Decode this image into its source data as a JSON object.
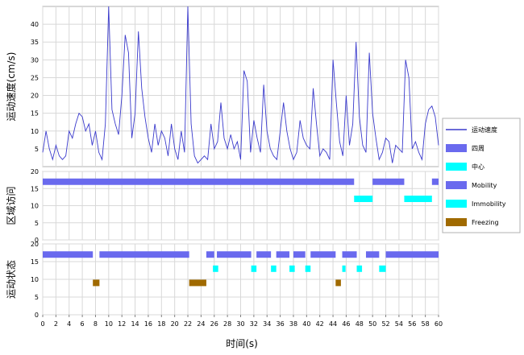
{
  "chart_data": {
    "type": "line",
    "xlabel": "时间(s)",
    "xlim": [
      0,
      60
    ],
    "xticks": [
      0,
      2,
      4,
      6,
      8,
      10,
      12,
      14,
      16,
      18,
      20,
      22,
      24,
      26,
      28,
      30,
      32,
      34,
      36,
      38,
      40,
      42,
      44,
      46,
      48,
      50,
      52,
      54,
      56,
      58,
      60
    ],
    "legend": [
      {
        "label": "运动速度",
        "color": "#3a3acc",
        "kind": "line"
      },
      {
        "label": "四周",
        "color": "#6a6aee",
        "kind": "box"
      },
      {
        "label": "中心",
        "color": "#00ffff",
        "kind": "box"
      },
      {
        "label": "Mobility",
        "color": "#6a6aee",
        "kind": "box"
      },
      {
        "label": "Immobility",
        "color": "#00ffff",
        "kind": "box"
      },
      {
        "label": "Freezing",
        "color": "#a06a00",
        "kind": "box"
      }
    ],
    "panels": [
      {
        "name": "speed",
        "ylabel": "运动速度(cm/s)",
        "ylim": [
          0,
          45
        ],
        "yticks": [
          5,
          10,
          15,
          20,
          25,
          30,
          35,
          40
        ],
        "series": [
          {
            "name": "运动速度",
            "color": "#3a3acc",
            "x": [
              0,
              0.5,
              1,
              1.5,
              2,
              2.5,
              3,
              3.5,
              4,
              4.5,
              5,
              5.5,
              6,
              6.5,
              7,
              7.5,
              8,
              8.5,
              9,
              9.5,
              10,
              10.5,
              11,
              11.5,
              12,
              12.5,
              13,
              13.5,
              14,
              14.5,
              15,
              15.5,
              16,
              16.5,
              17,
              17.5,
              18,
              18.5,
              19,
              19.5,
              20,
              20.5,
              21,
              21.5,
              22,
              22.5,
              23,
              23.5,
              24,
              24.5,
              25,
              25.5,
              26,
              26.5,
              27,
              27.5,
              28,
              28.5,
              29,
              29.5,
              30,
              30.5,
              31,
              31.5,
              32,
              32.5,
              33,
              33.5,
              34,
              34.5,
              35,
              35.5,
              36,
              36.5,
              37,
              37.5,
              38,
              38.5,
              39,
              39.5,
              40,
              40.5,
              41,
              41.5,
              42,
              42.5,
              43,
              43.5,
              44,
              44.5,
              45,
              45.5,
              46,
              46.5,
              47,
              47.5,
              48,
              48.5,
              49,
              49.5,
              50,
              50.5,
              51,
              51.5,
              52,
              52.5,
              53,
              53.5,
              54,
              54.5,
              55,
              55.5,
              56,
              56.5,
              57,
              57.5,
              58,
              58.5,
              59,
              59.5,
              60
            ],
            "y": [
              4,
              10,
              5,
              2,
              6,
              3,
              2,
              3,
              10,
              8,
              12,
              15,
              14,
              10,
              12,
              6,
              10,
              4,
              2,
              12,
              45,
              16,
              12,
              9,
              20,
              37,
              32,
              8,
              15,
              38,
              22,
              14,
              8,
              4,
              12,
              6,
              10,
              8,
              3,
              12,
              5,
              2,
              10,
              4,
              45,
              12,
              3,
              1,
              2,
              3,
              2,
              12,
              5,
              7,
              18,
              8,
              5,
              9,
              5,
              7,
              2,
              27,
              24,
              4,
              13,
              8,
              4,
              23,
              10,
              5,
              3,
              2,
              10,
              18,
              10,
              5,
              2,
              4,
              13,
              8,
              6,
              5,
              22,
              12,
              3,
              5,
              4,
              2,
              30,
              18,
              7,
              3,
              20,
              6,
              12,
              35,
              14,
              6,
              4,
              32,
              15,
              8,
              2,
              4,
              8,
              7,
              1,
              6,
              5,
              4,
              30,
              25,
              5,
              7,
              4,
              2,
              12,
              16,
              17,
              14,
              6
            ]
          }
        ]
      },
      {
        "name": "zone",
        "ylabel": "区域访问",
        "ylim": [
          0,
          20
        ],
        "yticks": [
          0,
          5,
          10,
          15,
          20
        ],
        "bands": [
          {
            "legend": "四周",
            "y": 17,
            "color": "#6a6aee",
            "intervals": [
              [
                0,
                47.2
              ],
              [
                50,
                54.8
              ],
              [
                59,
                60
              ]
            ]
          },
          {
            "legend": "中心",
            "y": 12,
            "color": "#00ffff",
            "intervals": [
              [
                47.2,
                50
              ],
              [
                54.8,
                59
              ]
            ]
          }
        ]
      },
      {
        "name": "state",
        "ylabel": "运动状态",
        "ylim": [
          0,
          20
        ],
        "yticks": [
          0,
          5,
          10,
          15,
          20
        ],
        "bands": [
          {
            "legend": "Mobility",
            "y": 17,
            "color": "#6a6aee",
            "intervals": [
              [
                0,
                7.6
              ],
              [
                8.6,
                22.2
              ],
              [
                24.8,
                26
              ],
              [
                26.4,
                31.6
              ],
              [
                32.4,
                34.6
              ],
              [
                35.4,
                37.4
              ],
              [
                38,
                39.8
              ],
              [
                40.6,
                44.4
              ],
              [
                45.4,
                47.6
              ],
              [
                49,
                51
              ],
              [
                52,
                60
              ]
            ]
          },
          {
            "legend": "Immobility",
            "y": 13,
            "color": "#00ffff",
            "intervals": [
              [
                25.8,
                26.6
              ],
              [
                31.6,
                32.4
              ],
              [
                34.6,
                35.4
              ],
              [
                37.4,
                38.2
              ],
              [
                39.8,
                40.6
              ],
              [
                45.4,
                45.9
              ],
              [
                47.6,
                48.4
              ],
              [
                51,
                52
              ]
            ]
          },
          {
            "legend": "Freezing",
            "y": 9,
            "color": "#a06a00",
            "intervals": [
              [
                7.6,
                8.6
              ],
              [
                22.2,
                24.8
              ],
              [
                44.4,
                45.2
              ]
            ]
          }
        ]
      }
    ]
  }
}
